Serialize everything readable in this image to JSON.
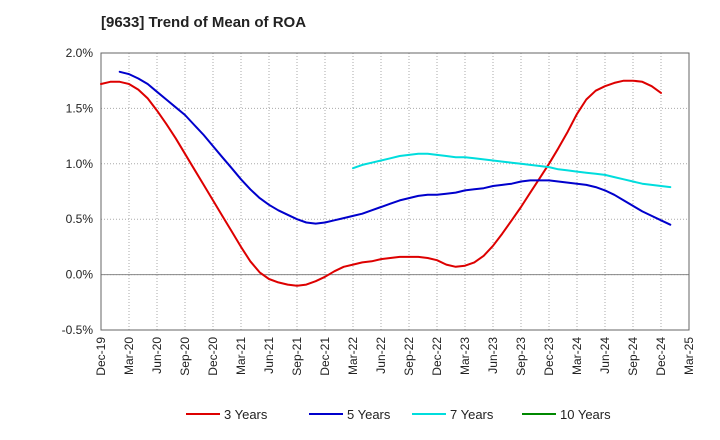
{
  "chart_data": {
    "type": "line",
    "title": "[9633]  Trend of Mean of ROA",
    "xlabel": "",
    "ylabel": "",
    "x_ticks": [
      "Dec-19",
      "Mar-20",
      "Jun-20",
      "Sep-20",
      "Dec-20",
      "Mar-21",
      "Jun-21",
      "Sep-21",
      "Dec-21",
      "Mar-22",
      "Jun-22",
      "Sep-22",
      "Dec-22",
      "Mar-23",
      "Jun-23",
      "Sep-23",
      "Dec-23",
      "Mar-24",
      "Jun-24",
      "Sep-24",
      "Dec-24",
      "Mar-25"
    ],
    "y_ticks": [
      "2.0%",
      "1.5%",
      "1.0%",
      "0.5%",
      "0.0%",
      "-0.5%"
    ],
    "y_tick_values": [
      2.0,
      1.5,
      1.0,
      0.5,
      0.0,
      -0.5
    ],
    "ylim": [
      -0.5,
      2.0
    ],
    "y_unit": "%",
    "grid": true,
    "legend_position": "bottom",
    "series": [
      {
        "name": "3 Years",
        "color": "#dd0000",
        "points": [
          [
            "Dec-19",
            1.72
          ],
          [
            "Jan-20",
            1.74
          ],
          [
            "Feb-20",
            1.74
          ],
          [
            "Mar-20",
            1.72
          ],
          [
            "Apr-20",
            1.67
          ],
          [
            "May-20",
            1.59
          ],
          [
            "Jun-20",
            1.48
          ],
          [
            "Jul-20",
            1.36
          ],
          [
            "Aug-20",
            1.23
          ],
          [
            "Sep-20",
            1.09
          ],
          [
            "Oct-20",
            0.95
          ],
          [
            "Nov-20",
            0.81
          ],
          [
            "Dec-20",
            0.67
          ],
          [
            "Jan-21",
            0.53
          ],
          [
            "Feb-21",
            0.39
          ],
          [
            "Mar-21",
            0.25
          ],
          [
            "Apr-21",
            0.12
          ],
          [
            "May-21",
            0.02
          ],
          [
            "Jun-21",
            -0.04
          ],
          [
            "Jul-21",
            -0.07
          ],
          [
            "Aug-21",
            -0.09
          ],
          [
            "Sep-21",
            -0.1
          ],
          [
            "Oct-21",
            -0.09
          ],
          [
            "Nov-21",
            -0.06
          ],
          [
            "Dec-21",
            -0.02
          ],
          [
            "Jan-22",
            0.03
          ],
          [
            "Feb-22",
            0.07
          ],
          [
            "Mar-22",
            0.09
          ],
          [
            "Apr-22",
            0.11
          ],
          [
            "May-22",
            0.12
          ],
          [
            "Jun-22",
            0.14
          ],
          [
            "Jul-22",
            0.15
          ],
          [
            "Aug-22",
            0.16
          ],
          [
            "Sep-22",
            0.16
          ],
          [
            "Oct-22",
            0.16
          ],
          [
            "Nov-22",
            0.15
          ],
          [
            "Dec-22",
            0.13
          ],
          [
            "Jan-23",
            0.09
          ],
          [
            "Feb-23",
            0.07
          ],
          [
            "Mar-23",
            0.08
          ],
          [
            "Apr-23",
            0.11
          ],
          [
            "May-23",
            0.17
          ],
          [
            "Jun-23",
            0.26
          ],
          [
            "Jul-23",
            0.37
          ],
          [
            "Aug-23",
            0.49
          ],
          [
            "Sep-23",
            0.61
          ],
          [
            "Oct-23",
            0.74
          ],
          [
            "Nov-23",
            0.87
          ],
          [
            "Dec-23",
            1.0
          ],
          [
            "Jan-24",
            1.14
          ],
          [
            "Feb-24",
            1.29
          ],
          [
            "Mar-24",
            1.45
          ],
          [
            "Apr-24",
            1.58
          ],
          [
            "May-24",
            1.66
          ],
          [
            "Jun-24",
            1.7
          ],
          [
            "Jul-24",
            1.73
          ],
          [
            "Aug-24",
            1.75
          ],
          [
            "Sep-24",
            1.75
          ],
          [
            "Oct-24",
            1.74
          ],
          [
            "Nov-24",
            1.7
          ],
          [
            "Dec-24",
            1.64
          ]
        ]
      },
      {
        "name": "5 Years",
        "color": "#0000cc",
        "points": [
          [
            "Feb-20",
            1.83
          ],
          [
            "Mar-20",
            1.81
          ],
          [
            "Apr-20",
            1.77
          ],
          [
            "May-20",
            1.72
          ],
          [
            "Jun-20",
            1.65
          ],
          [
            "Jul-20",
            1.58
          ],
          [
            "Aug-20",
            1.51
          ],
          [
            "Sep-20",
            1.44
          ],
          [
            "Oct-20",
            1.35
          ],
          [
            "Nov-20",
            1.26
          ],
          [
            "Dec-20",
            1.16
          ],
          [
            "Jan-21",
            1.06
          ],
          [
            "Feb-21",
            0.96
          ],
          [
            "Mar-21",
            0.86
          ],
          [
            "Apr-21",
            0.77
          ],
          [
            "May-21",
            0.69
          ],
          [
            "Jun-21",
            0.63
          ],
          [
            "Jul-21",
            0.58
          ],
          [
            "Aug-21",
            0.54
          ],
          [
            "Sep-21",
            0.5
          ],
          [
            "Oct-21",
            0.47
          ],
          [
            "Nov-21",
            0.46
          ],
          [
            "Dec-21",
            0.47
          ],
          [
            "Jan-22",
            0.49
          ],
          [
            "Feb-22",
            0.51
          ],
          [
            "Mar-22",
            0.53
          ],
          [
            "Apr-22",
            0.55
          ],
          [
            "May-22",
            0.58
          ],
          [
            "Jun-22",
            0.61
          ],
          [
            "Jul-22",
            0.64
          ],
          [
            "Aug-22",
            0.67
          ],
          [
            "Sep-22",
            0.69
          ],
          [
            "Oct-22",
            0.71
          ],
          [
            "Nov-22",
            0.72
          ],
          [
            "Dec-22",
            0.72
          ],
          [
            "Jan-23",
            0.73
          ],
          [
            "Feb-23",
            0.74
          ],
          [
            "Mar-23",
            0.76
          ],
          [
            "Apr-23",
            0.77
          ],
          [
            "May-23",
            0.78
          ],
          [
            "Jun-23",
            0.8
          ],
          [
            "Jul-23",
            0.81
          ],
          [
            "Aug-23",
            0.82
          ],
          [
            "Sep-23",
            0.84
          ],
          [
            "Oct-23",
            0.85
          ],
          [
            "Nov-23",
            0.85
          ],
          [
            "Dec-23",
            0.85
          ],
          [
            "Jan-24",
            0.84
          ],
          [
            "Feb-24",
            0.83
          ],
          [
            "Mar-24",
            0.82
          ],
          [
            "Apr-24",
            0.81
          ],
          [
            "May-24",
            0.79
          ],
          [
            "Jun-24",
            0.76
          ],
          [
            "Jul-24",
            0.72
          ],
          [
            "Aug-24",
            0.67
          ],
          [
            "Sep-24",
            0.62
          ],
          [
            "Oct-24",
            0.57
          ],
          [
            "Nov-24",
            0.53
          ],
          [
            "Dec-24",
            0.49
          ],
          [
            "Jan-25",
            0.45
          ]
        ]
      },
      {
        "name": "7 Years",
        "color": "#00dddd",
        "points": [
          [
            "Mar-22",
            0.96
          ],
          [
            "Apr-22",
            0.99
          ],
          [
            "May-22",
            1.01
          ],
          [
            "Jun-22",
            1.03
          ],
          [
            "Jul-22",
            1.05
          ],
          [
            "Aug-22",
            1.07
          ],
          [
            "Sep-22",
            1.08
          ],
          [
            "Oct-22",
            1.09
          ],
          [
            "Nov-22",
            1.09
          ],
          [
            "Dec-22",
            1.08
          ],
          [
            "Jan-23",
            1.07
          ],
          [
            "Feb-23",
            1.06
          ],
          [
            "Mar-23",
            1.06
          ],
          [
            "Apr-23",
            1.05
          ],
          [
            "May-23",
            1.04
          ],
          [
            "Jun-23",
            1.03
          ],
          [
            "Jul-23",
            1.02
          ],
          [
            "Aug-23",
            1.01
          ],
          [
            "Sep-23",
            1.0
          ],
          [
            "Oct-23",
            0.99
          ],
          [
            "Nov-23",
            0.98
          ],
          [
            "Dec-23",
            0.97
          ],
          [
            "Jan-24",
            0.95
          ],
          [
            "Feb-24",
            0.94
          ],
          [
            "Mar-24",
            0.93
          ],
          [
            "Apr-24",
            0.92
          ],
          [
            "May-24",
            0.91
          ],
          [
            "Jun-24",
            0.9
          ],
          [
            "Jul-24",
            0.88
          ],
          [
            "Aug-24",
            0.86
          ],
          [
            "Sep-24",
            0.84
          ],
          [
            "Oct-24",
            0.82
          ],
          [
            "Nov-24",
            0.81
          ],
          [
            "Dec-24",
            0.8
          ],
          [
            "Jan-25",
            0.79
          ]
        ]
      },
      {
        "name": "10 Years",
        "color": "#008800",
        "points": []
      }
    ]
  }
}
